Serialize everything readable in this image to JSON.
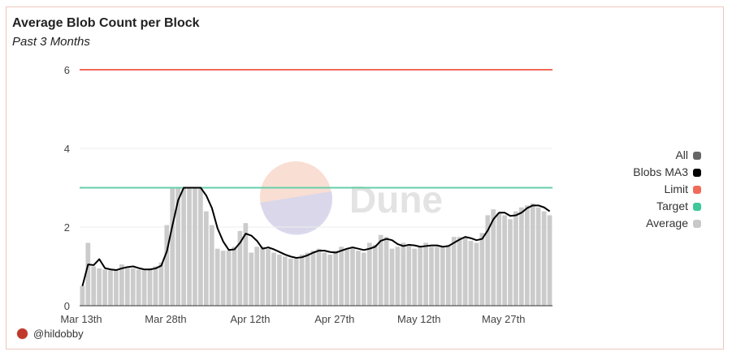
{
  "title": "Average Blob Count per Block",
  "subtitle": "Past 3 Months",
  "author": "@hildobby",
  "watermark": "Dune",
  "legend": [
    {
      "label": "All",
      "color": "#666666"
    },
    {
      "label": "Blobs MA3",
      "color": "#000000"
    },
    {
      "label": "Limit",
      "color": "#f06a5a"
    },
    {
      "label": "Target",
      "color": "#3dc99a"
    },
    {
      "label": "Average",
      "color": "#c8c8c8"
    }
  ],
  "chart_data": {
    "type": "bar",
    "title": "Average Blob Count per Block",
    "ylim": [
      0,
      6
    ],
    "yticks": [
      "0",
      "2",
      "4",
      "6"
    ],
    "ytick_values": [
      0,
      2,
      4,
      6
    ],
    "xticks": [
      {
        "label": "Mar 13th",
        "day": 0
      },
      {
        "label": "Mar 28th",
        "day": 15
      },
      {
        "label": "Apr 12th",
        "day": 30
      },
      {
        "label": "Apr 27th",
        "day": 45
      },
      {
        "label": "May 12th",
        "day": 60
      },
      {
        "label": "May 27th",
        "day": 75
      }
    ],
    "limit": 6,
    "target": 3,
    "average": [
      0.5,
      1.6,
      1.0,
      0.95,
      0.92,
      0.9,
      0.9,
      1.05,
      1.0,
      0.95,
      0.92,
      0.9,
      0.95,
      1.0,
      1.1,
      2.05,
      3.0,
      3.0,
      3.0,
      3.0,
      3.0,
      3.0,
      2.4,
      2.05,
      1.45,
      1.4,
      1.4,
      1.5,
      1.9,
      2.1,
      1.35,
      1.5,
      1.5,
      1.45,
      1.35,
      1.3,
      1.25,
      1.2,
      1.2,
      1.3,
      1.35,
      1.4,
      1.45,
      1.35,
      1.3,
      1.4,
      1.5,
      1.45,
      1.5,
      1.4,
      1.35,
      1.6,
      1.55,
      1.8,
      1.75,
      1.45,
      1.5,
      1.6,
      1.55,
      1.45,
      1.5,
      1.6,
      1.5,
      1.5,
      1.5,
      1.55,
      1.75,
      1.75,
      1.75,
      1.65,
      1.6,
      1.85,
      2.3,
      2.45,
      2.35,
      2.3,
      2.2,
      2.4,
      2.5,
      2.55,
      2.6,
      2.5,
      2.4,
      2.3
    ],
    "series_ma3_name": "Blobs MA3"
  }
}
